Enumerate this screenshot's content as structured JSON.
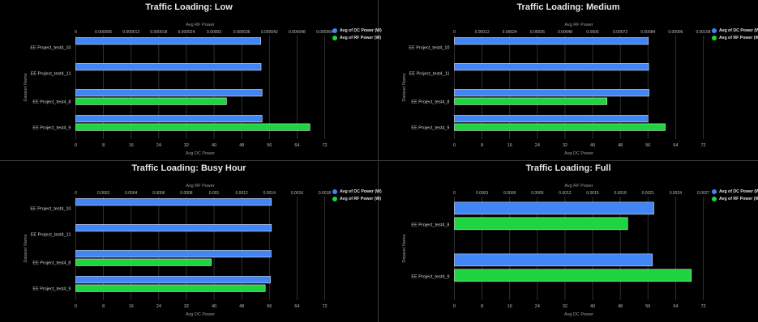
{
  "colors": {
    "dc": "#4285f4",
    "rf": "#1ed43f",
    "grid": "#3c3c3c",
    "text": "#bdbdbd"
  },
  "legend": {
    "dc": "Avg of DC Power (W)",
    "rf": "Avg of RF Power (W)"
  },
  "chart_data": [
    {
      "type": "bar",
      "title": "Traffic Loading: Low",
      "ylabel": "Dataset Name",
      "xlabel": "Avg DC Power",
      "x2label": "Avg RF Power",
      "categories": [
        "EE Project_test4_10",
        "EE Project_test4_11",
        "EE Project_test4_8",
        "EE Project_test4_9"
      ],
      "series": [
        {
          "name": "Avg of DC Power (W)",
          "axis": "bottom",
          "values": [
            53.5,
            53.6,
            53.9,
            53.9
          ]
        },
        {
          "name": "Avg of RF Power (W)",
          "axis": "top",
          "values": [
            null,
            null,
            3.27e-05,
            5.08e-05
          ]
        }
      ],
      "xlim": [
        0,
        72
      ],
      "xticks": [
        "0",
        "8",
        "16",
        "24",
        "32",
        "40",
        "48",
        "56",
        "64",
        "72"
      ],
      "x2lim": [
        0,
        5.4e-05
      ],
      "x2ticks": [
        "0",
        "0.000006",
        "0.000012",
        "0.000018",
        "0.000024",
        "0.00003",
        "0.000036",
        "0.000042",
        "0.000048",
        "0.000054"
      ]
    },
    {
      "type": "bar",
      "title": "Traffic Loading: Medium",
      "ylabel": "Dataset Name",
      "xlabel": "Avg DC Power",
      "x2label": "Avg RF Power",
      "categories": [
        "EE Project_test4_10",
        "EE Project_test4_11",
        "EE Project_test4_8",
        "EE Project_test4_9"
      ],
      "series": [
        {
          "name": "Avg of DC Power (W)",
          "axis": "bottom",
          "values": [
            56.1,
            56.2,
            56.3,
            56.0
          ]
        },
        {
          "name": "Avg of RF Power (W)",
          "axis": "top",
          "values": [
            null,
            null,
            0.000662,
            0.000915
          ]
        }
      ],
      "xlim": [
        0,
        72
      ],
      "xticks": [
        "0",
        "8",
        "16",
        "24",
        "32",
        "40",
        "48",
        "56",
        "64",
        "72"
      ],
      "x2lim": [
        0,
        0.00108
      ],
      "x2ticks": [
        "0",
        "0.00012",
        "0.00024",
        "0.00036",
        "0.00048",
        "0.0006",
        "0.00072",
        "0.00084",
        "0.00096",
        "0.00108"
      ]
    },
    {
      "type": "bar",
      "title": "Traffic Loading: Busy Hour",
      "ylabel": "Dataset Name",
      "xlabel": "Avg DC Power",
      "x2label": "Avg RF Power",
      "categories": [
        "EE Project_test4_10",
        "EE Project_test4_11",
        "EE Project_test4_8",
        "EE Project_test4_9"
      ],
      "series": [
        {
          "name": "Avg of DC Power (W)",
          "axis": "bottom",
          "values": [
            56.6,
            56.6,
            56.5,
            56.3
          ]
        },
        {
          "name": "Avg of RF Power (W)",
          "axis": "top",
          "values": [
            null,
            null,
            0.00098,
            0.00137
          ]
        }
      ],
      "xlim": [
        0,
        72
      ],
      "xticks": [
        "0",
        "8",
        "16",
        "24",
        "32",
        "40",
        "48",
        "56",
        "64",
        "72"
      ],
      "x2lim": [
        0,
        0.0018
      ],
      "x2ticks": [
        "0",
        "0.0002",
        "0.0004",
        "0.0006",
        "0.0008",
        "0.001",
        "0.0012",
        "0.0014",
        "0.0016",
        "0.0018"
      ]
    },
    {
      "type": "bar",
      "title": "Traffic Loading: Full",
      "ylabel": "Dataset Name",
      "xlabel": "Avg DC Power",
      "x2label": "Avg RF Power",
      "categories": [
        "EE Project_test4_8",
        "EE Project_test4_9"
      ],
      "series": [
        {
          "name": "Avg of DC Power (W)",
          "axis": "bottom",
          "values": [
            57.7,
            57.3
          ]
        },
        {
          "name": "Avg of RF Power (W)",
          "axis": "top",
          "values": [
            0.00188,
            0.00257
          ]
        }
      ],
      "xlim": [
        0,
        72
      ],
      "xticks": [
        "0",
        "8",
        "16",
        "24",
        "32",
        "40",
        "48",
        "56",
        "64",
        "72"
      ],
      "x2lim": [
        0,
        0.0027
      ],
      "x2ticks": [
        "0",
        "0.0003",
        "0.0006",
        "0.0009",
        "0.0012",
        "0.0015",
        "0.0018",
        "0.0021",
        "0.0024",
        "0.0027"
      ]
    }
  ]
}
